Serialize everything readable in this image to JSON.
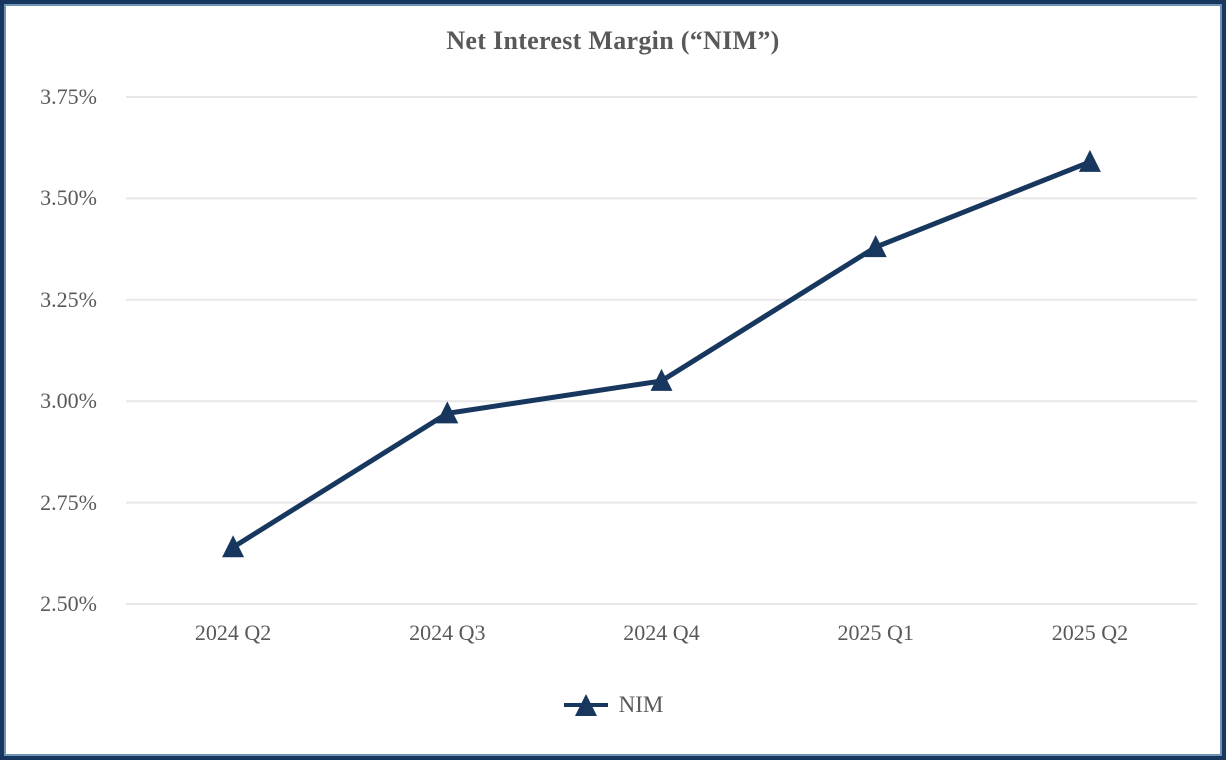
{
  "chart": {
    "title": "Net Interest Margin (“NIM”)",
    "legend": {
      "label": "NIM",
      "marker": "triangle-marker-icon"
    }
  },
  "chart_data": {
    "type": "line",
    "title": "Net Interest Margin (“NIM”)",
    "categories": [
      "2024 Q2",
      "2024 Q3",
      "2024 Q4",
      "2025 Q1",
      "2025 Q2"
    ],
    "series": [
      {
        "name": "NIM",
        "values": [
          2.64,
          2.97,
          3.05,
          3.38,
          3.59
        ]
      }
    ],
    "value_unit": "%",
    "ylim": [
      2.5,
      3.75
    ],
    "ytick_step": 0.25,
    "ytick_labels_top_to_bottom": [
      "3.75%",
      "3.50%",
      "3.25%",
      "3.00%",
      "2.75%",
      "2.50%"
    ],
    "grid": true,
    "legend_position": "bottom",
    "marker_shape": "triangle",
    "colors": {
      "line": "#17375E",
      "marker": "#17375E",
      "gridline": "#E7E7E7",
      "text": "#595959",
      "frame_outer": "#17375E",
      "frame_inner": "#7193B5",
      "background": "#FFFFFF"
    }
  }
}
